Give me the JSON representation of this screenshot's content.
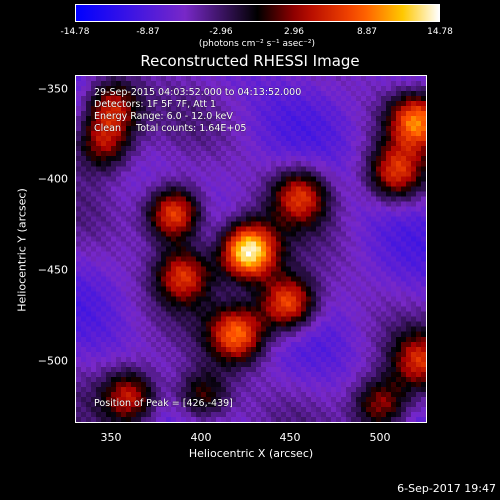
{
  "chart_data": {
    "type": "heatmap",
    "title": "Reconstructed RHESSI Image",
    "colorbar": {
      "ticks": [
        "-14.78",
        "-8.87",
        "-2.96",
        "2.96",
        "8.87",
        "14.78"
      ],
      "range": [
        -14.78,
        14.78
      ],
      "label": "(photons cm⁻² s⁻¹ asec⁻²)"
    },
    "xlabel": "Heliocentric X (arcsec)",
    "ylabel": "Heliocentric Y (arcsec)",
    "x_ticks": [
      "350",
      "400",
      "450",
      "500"
    ],
    "y_ticks": [
      "−350",
      "−400",
      "−450",
      "−500"
    ],
    "xlim": [
      330,
      525
    ],
    "ylim": [
      -534,
      -341
    ],
    "annotations": {
      "time_range": "29-Sep-2015 04:03:52.000 to 04:13:52.000",
      "detectors": "Detectors: 1F 5F 7F, Att 1",
      "energy": "Energy Range: 6.0 - 12.0 keV",
      "method": "Clean     Total counts: 1.64E+05",
      "peak": "Position of Peak = [426,-439]"
    },
    "peak": [
      426,
      -439
    ],
    "sources": [
      {
        "x": 426,
        "y": -439,
        "intensity": 14.78
      },
      {
        "x": 385,
        "y": -418,
        "intensity": 9.5
      },
      {
        "x": 448,
        "y": -468,
        "intensity": 9.0
      },
      {
        "x": 420,
        "y": -485,
        "intensity": 8.0
      },
      {
        "x": 455,
        "y": -408,
        "intensity": 5.0
      },
      {
        "x": 390,
        "y": -452,
        "intensity": 5.5
      },
      {
        "x": 520,
        "y": -366,
        "intensity": 7.5
      },
      {
        "x": 508,
        "y": -395,
        "intensity": 5.0
      },
      {
        "x": 350,
        "y": -358,
        "intensity": 5.0
      },
      {
        "x": 345,
        "y": -378,
        "intensity": 4.0
      },
      {
        "x": 360,
        "y": -520,
        "intensity": 5.0
      },
      {
        "x": 400,
        "y": -520,
        "intensity": 2.5
      },
      {
        "x": 500,
        "y": -525,
        "intensity": 4.0
      },
      {
        "x": 522,
        "y": -500,
        "intensity": 3.5
      }
    ]
  },
  "footer": {
    "date": "6-Sep-2017 19:47"
  }
}
